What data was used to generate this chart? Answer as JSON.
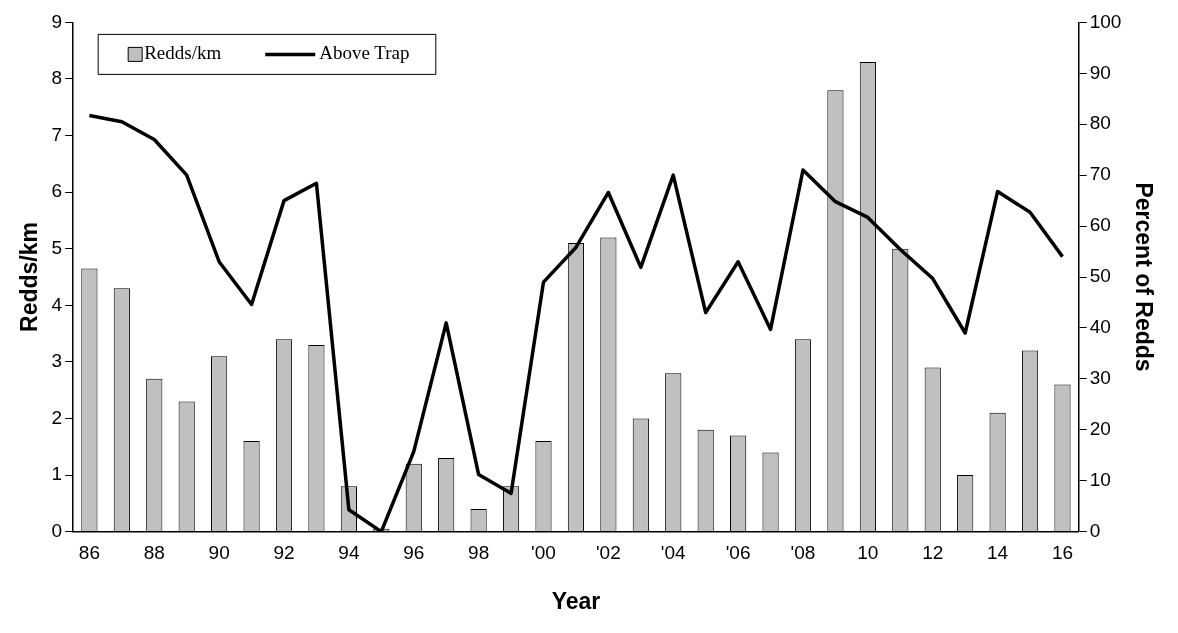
{
  "chart_data": {
    "type": "bar",
    "xlabel": "Year",
    "ylabel": "Redds/km",
    "y2label": "Percent of Redds",
    "categories": [
      "86",
      null,
      "88",
      null,
      "90",
      null,
      "92",
      null,
      "94",
      null,
      "96",
      null,
      "98",
      null,
      "'00",
      null,
      "'02",
      null,
      "'04",
      null,
      "'06",
      null,
      "'08",
      null,
      "10",
      null,
      "12",
      null,
      "14",
      null,
      "16"
    ],
    "series": [
      {
        "name": "Redds/km",
        "color": "#c0c0c0",
        "values": [
          4.65,
          4.3,
          2.7,
          2.3,
          3.1,
          1.6,
          3.4,
          3.3,
          0.8,
          0.05,
          1.2,
          1.3,
          0.4,
          0.8,
          1.6,
          5.1,
          5.2,
          2.0,
          2.8,
          1.8,
          1.7,
          1.4,
          3.4,
          7.8,
          8.3,
          5.0,
          2.9,
          1.0,
          2.1,
          3.2,
          2.6
        ]
      },
      {
        "name": "Above Trap",
        "type": "line",
        "axis": "y2",
        "color": "#000000",
        "values": [
          81.7,
          80.5,
          77,
          70,
          53,
          44.6,
          65,
          68.4,
          4.3,
          0,
          15.7,
          41,
          11.2,
          7.5,
          49,
          55.8,
          66.6,
          51.9,
          70,
          43,
          53,
          39.7,
          71,
          64.8,
          61.7,
          55.4,
          49.7,
          39,
          66.8,
          62.7,
          54
        ]
      }
    ],
    "ylim": [
      0,
      9
    ],
    "yticks": [
      0,
      1,
      2,
      3,
      4,
      5,
      6,
      7,
      8,
      9
    ],
    "y2lim": [
      0,
      100
    ],
    "y2ticks": [
      0,
      10,
      20,
      30,
      40,
      50,
      60,
      70,
      80,
      90,
      100
    ],
    "legend": "top left",
    "grid": false,
    "marker": "none",
    "line_style": "solid"
  }
}
